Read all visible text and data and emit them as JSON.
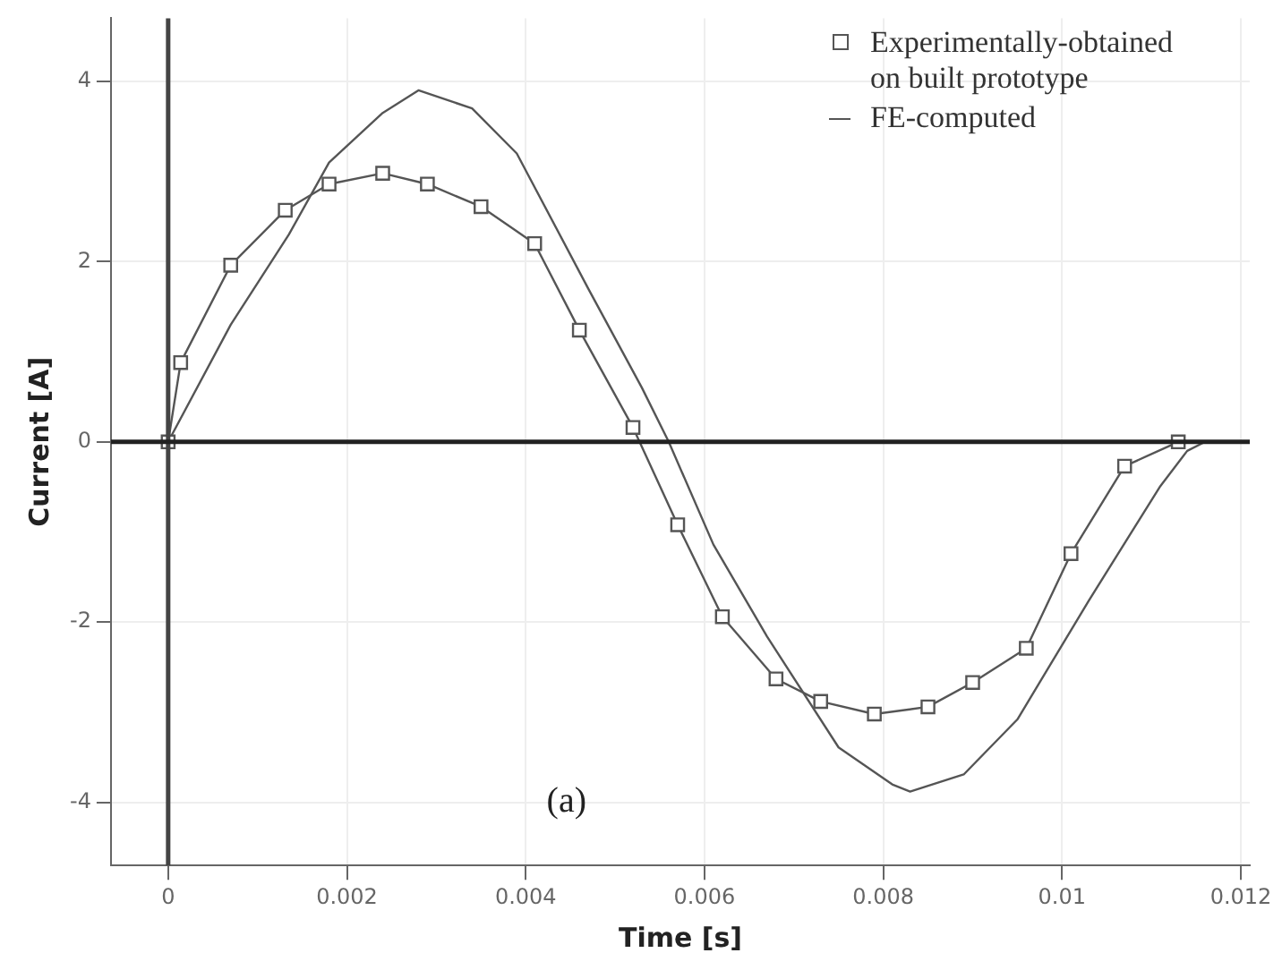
{
  "chart_data": {
    "type": "line",
    "xlabel": "Time [s]",
    "ylabel": "Current [A]",
    "xlim": [
      -0.00064,
      0.0121
    ],
    "ylim": [
      -4.7,
      4.7
    ],
    "xticks": [
      0,
      0.002,
      0.004,
      0.006,
      0.008,
      0.01,
      0.012
    ],
    "yticks": [
      -4,
      -2,
      0,
      2,
      4
    ],
    "grid": true,
    "legend": "top right",
    "annotations": [
      "(a)"
    ],
    "ref_lines": [
      {
        "axis": "x",
        "value": 0,
        "color": "#444444"
      },
      {
        "axis": "y",
        "value": 0,
        "color": "#222222"
      }
    ],
    "series": [
      {
        "name": "Experimentally-obtained on built prototype",
        "color": "#555555",
        "marker": "square",
        "x": [
          0,
          0.00014,
          0.0007,
          0.00131,
          0.0018,
          0.0024,
          0.0029,
          0.0035,
          0.0041,
          0.0046,
          0.0052,
          0.0057,
          0.0062,
          0.0068,
          0.0073,
          0.0079,
          0.0085,
          0.009,
          0.0096,
          0.0101,
          0.0107,
          0.0113
        ],
        "values": [
          0,
          0.88,
          1.96,
          2.57,
          2.86,
          2.98,
          2.86,
          2.61,
          2.2,
          1.24,
          0.16,
          -0.92,
          -1.94,
          -2.63,
          -2.88,
          -3.02,
          -2.94,
          -2.67,
          -2.29,
          -1.24,
          -0.27,
          0
        ]
      },
      {
        "name": "FE-computed",
        "color": "#555555",
        "marker": "none",
        "x": [
          0,
          0.0007,
          0.00135,
          0.0018,
          0.0024,
          0.0028,
          0.0034,
          0.0039,
          0.0047,
          0.0053,
          0.0056,
          0.0061,
          0.0067,
          0.0075,
          0.0081,
          0.0083,
          0.0089,
          0.0095,
          0.0103,
          0.0111,
          0.0114,
          0.0116
        ],
        "values": [
          0,
          1.3,
          2.3,
          3.1,
          3.65,
          3.9,
          3.7,
          3.2,
          1.7,
          0.6,
          0,
          -1.14,
          -2.16,
          -3.39,
          -3.8,
          -3.88,
          -3.69,
          -3.08,
          -1.76,
          -0.49,
          -0.1,
          0
        ]
      }
    ]
  }
}
